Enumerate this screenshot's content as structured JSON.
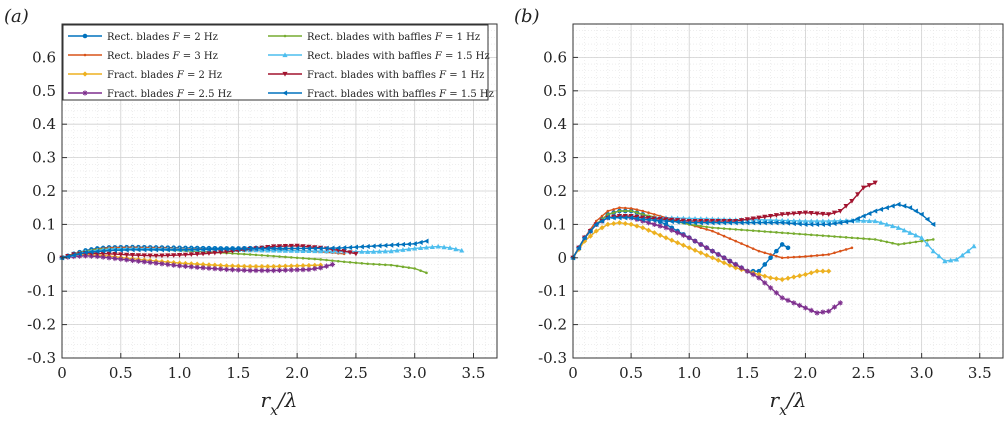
{
  "panels": [
    {
      "label": "(a)",
      "xlabel_main": "r",
      "xlabel_sub": "x",
      "xlabel_tail": "/λ"
    },
    {
      "label": "(b)",
      "xlabel_main": "r",
      "xlabel_sub": "x",
      "xlabel_tail": "/λ"
    }
  ],
  "legend": {
    "placement": "top-left (panel a)",
    "entries": [
      {
        "prefix": "Rect. blades ",
        "var": "F",
        "suffix": " = 2 Hz"
      },
      {
        "prefix": "Rect. blades ",
        "var": "F",
        "suffix": " = 3 Hz"
      },
      {
        "prefix": "Fract. blades ",
        "var": "F",
        "suffix": " = 2 Hz"
      },
      {
        "prefix": "Fract. blades ",
        "var": "F",
        "suffix": " = 2.5 Hz"
      },
      {
        "prefix": "Rect. blades with baffles ",
        "var": "F",
        "suffix": " = 1 Hz"
      },
      {
        "prefix": "Rect. blades with baffles ",
        "var": "F",
        "suffix": " = 1.5 Hz"
      },
      {
        "prefix": "Fract. blades with baffles ",
        "var": "F",
        "suffix": " = 1 Hz"
      },
      {
        "prefix": "Fract. blades with baffles ",
        "var": "F",
        "suffix": " = 1.5 Hz"
      }
    ]
  },
  "chart_data": [
    {
      "type": "line",
      "panel": "(a)",
      "xlim": [
        0,
        3.7
      ],
      "ylim": [
        -0.3,
        0.7
      ],
      "xticks": [
        "0",
        "0.5",
        "1.0",
        "1.5",
        "2.0",
        "2.5",
        "3.0",
        "3.5"
      ],
      "yticks": [
        "-0.3",
        "-0.2",
        "-0.1",
        "0",
        "0.1",
        "0.2",
        "0.3",
        "0.4",
        "0.5",
        "0.6"
      ],
      "grid": true,
      "series": [
        {
          "name": "Rect. blades F = 2 Hz",
          "color": "#0072BD",
          "marker": "circle",
          "x": [
            0,
            0.1,
            0.2,
            0.3,
            0.4,
            0.6,
            0.8,
            1.0,
            1.2,
            1.4,
            1.5,
            1.6,
            1.7,
            1.8,
            1.9
          ],
          "y": [
            0,
            0.012,
            0.022,
            0.028,
            0.031,
            0.032,
            0.031,
            0.03,
            0.029,
            0.028,
            0.028,
            0.029,
            0.03,
            0.028,
            0.026
          ]
        },
        {
          "name": "Rect. blades F = 3 Hz",
          "color": "#D95319",
          "marker": "dot",
          "x": [
            0,
            0.1,
            0.2,
            0.3,
            0.4,
            0.6,
            0.8,
            1.0,
            1.2,
            1.4,
            1.6,
            1.8,
            2.0,
            2.2,
            2.4
          ],
          "y": [
            0,
            0.01,
            0.02,
            0.026,
            0.03,
            0.031,
            0.03,
            0.028,
            0.026,
            0.024,
            0.022,
            0.022,
            0.022,
            0.018,
            0.012
          ]
        },
        {
          "name": "Fract. blades F = 2 Hz",
          "color": "#EDB120",
          "marker": "diamond",
          "x": [
            0,
            0.1,
            0.2,
            0.3,
            0.4,
            0.6,
            0.8,
            1.0,
            1.2,
            1.4,
            1.6,
            1.8,
            2.0,
            2.2
          ],
          "y": [
            0,
            0.006,
            0.01,
            0.008,
            0.005,
            -0.003,
            -0.01,
            -0.016,
            -0.02,
            -0.024,
            -0.026,
            -0.026,
            -0.024,
            -0.022
          ]
        },
        {
          "name": "Fract. blades F = 2.5 Hz",
          "color": "#7E2F8E",
          "marker": "star",
          "x": [
            0,
            0.1,
            0.2,
            0.3,
            0.4,
            0.6,
            0.8,
            1.0,
            1.2,
            1.4,
            1.6,
            1.8,
            2.0,
            2.1,
            2.2,
            2.3
          ],
          "y": [
            0,
            0.004,
            0.006,
            0.004,
            0.0,
            -0.008,
            -0.016,
            -0.024,
            -0.03,
            -0.035,
            -0.038,
            -0.038,
            -0.036,
            -0.035,
            -0.03,
            -0.02
          ]
        },
        {
          "name": "Rect. blades with baffles F = 1 Hz",
          "color": "#77AC30",
          "marker": "dot",
          "x": [
            0,
            0.1,
            0.2,
            0.3,
            0.4,
            0.6,
            0.8,
            1.0,
            1.2,
            1.4,
            1.6,
            1.8,
            2.0,
            2.2,
            2.4,
            2.6,
            2.8,
            3.0,
            3.1
          ],
          "y": [
            0,
            0.012,
            0.02,
            0.025,
            0.027,
            0.027,
            0.025,
            0.022,
            0.018,
            0.014,
            0.01,
            0.005,
            0.0,
            -0.005,
            -0.012,
            -0.018,
            -0.022,
            -0.032,
            -0.045
          ]
        },
        {
          "name": "Rect. blades with baffles F = 1.5 Hz",
          "color": "#4DBEEE",
          "marker": "triangle-up",
          "x": [
            0,
            0.2,
            0.4,
            0.6,
            0.8,
            1.0,
            1.2,
            1.4,
            1.6,
            1.8,
            2.0,
            2.2,
            2.4,
            2.6,
            2.8,
            3.0,
            3.2,
            3.3,
            3.4
          ],
          "y": [
            0,
            0.018,
            0.026,
            0.028,
            0.027,
            0.026,
            0.025,
            0.024,
            0.023,
            0.022,
            0.021,
            0.02,
            0.019,
            0.018,
            0.02,
            0.028,
            0.034,
            0.03,
            0.022
          ]
        },
        {
          "name": "Fract. blades with baffles F = 1 Hz",
          "color": "#A2142F",
          "marker": "triangle-down",
          "x": [
            0,
            0.1,
            0.2,
            0.4,
            0.6,
            0.8,
            1.0,
            1.2,
            1.4,
            1.6,
            1.8,
            2.0,
            2.2,
            2.4,
            2.5
          ],
          "y": [
            0,
            0.01,
            0.014,
            0.012,
            0.008,
            0.006,
            0.008,
            0.012,
            0.018,
            0.026,
            0.034,
            0.036,
            0.03,
            0.02,
            0.012
          ]
        },
        {
          "name": "Fract. blades with baffles F = 1.5 Hz",
          "color": "#0072BD",
          "marker": "triangle-left",
          "x": [
            0,
            0.2,
            0.4,
            0.6,
            0.8,
            1.0,
            1.2,
            1.4,
            1.6,
            1.8,
            2.0,
            2.2,
            2.4,
            2.6,
            2.8,
            3.0,
            3.1
          ],
          "y": [
            0,
            0.016,
            0.022,
            0.024,
            0.024,
            0.024,
            0.025,
            0.026,
            0.027,
            0.028,
            0.028,
            0.028,
            0.03,
            0.034,
            0.038,
            0.042,
            0.05
          ]
        }
      ]
    },
    {
      "type": "line",
      "panel": "(b)",
      "xlim": [
        0,
        3.7
      ],
      "ylim": [
        -0.3,
        0.7
      ],
      "xticks": [
        "0",
        "0.5",
        "1.0",
        "1.5",
        "2.0",
        "2.5",
        "3.0",
        "3.5"
      ],
      "yticks": [
        "-0.3",
        "-0.2",
        "-0.1",
        "0",
        "0.1",
        "0.2",
        "0.3",
        "0.4",
        "0.5",
        "0.6"
      ],
      "grid": true,
      "series": [
        {
          "name": "Rect. blades F = 2 Hz",
          "color": "#0072BD",
          "marker": "circle",
          "x": [
            0,
            0.1,
            0.2,
            0.3,
            0.4,
            0.5,
            0.6,
            0.8,
            1.0,
            1.2,
            1.4,
            1.5,
            1.6,
            1.7,
            1.8,
            1.85
          ],
          "y": [
            0,
            0.06,
            0.1,
            0.13,
            0.14,
            0.14,
            0.13,
            0.1,
            0.06,
            0.02,
            -0.02,
            -0.04,
            -0.04,
            0.0,
            0.04,
            0.03
          ]
        },
        {
          "name": "Rect. blades F = 3 Hz",
          "color": "#D95319",
          "marker": "dot",
          "x": [
            0,
            0.1,
            0.2,
            0.3,
            0.4,
            0.5,
            0.6,
            0.8,
            1.0,
            1.2,
            1.4,
            1.6,
            1.8,
            2.0,
            2.2,
            2.4
          ],
          "y": [
            0,
            0.06,
            0.11,
            0.14,
            0.15,
            0.148,
            0.14,
            0.12,
            0.1,
            0.08,
            0.05,
            0.02,
            0.0,
            0.004,
            0.01,
            0.03
          ]
        },
        {
          "name": "Fract. blades F = 2 Hz",
          "color": "#EDB120",
          "marker": "diamond",
          "x": [
            0,
            0.1,
            0.2,
            0.3,
            0.4,
            0.5,
            0.6,
            0.8,
            1.0,
            1.2,
            1.4,
            1.6,
            1.7,
            1.8,
            2.0,
            2.1,
            2.2
          ],
          "y": [
            0,
            0.05,
            0.08,
            0.1,
            0.105,
            0.1,
            0.09,
            0.06,
            0.03,
            0.0,
            -0.03,
            -0.05,
            -0.06,
            -0.065,
            -0.05,
            -0.04,
            -0.04
          ]
        },
        {
          "name": "Fract. blades F = 2.5 Hz",
          "color": "#7E2F8E",
          "marker": "star",
          "x": [
            0,
            0.1,
            0.2,
            0.3,
            0.4,
            0.5,
            0.6,
            0.8,
            1.0,
            1.2,
            1.4,
            1.6,
            1.8,
            2.0,
            2.1,
            2.2,
            2.3
          ],
          "y": [
            0,
            0.06,
            0.1,
            0.12,
            0.125,
            0.12,
            0.11,
            0.09,
            0.06,
            0.02,
            -0.02,
            -0.06,
            -0.12,
            -0.15,
            -0.165,
            -0.16,
            -0.135
          ]
        },
        {
          "name": "Rect. blades with baffles F = 1 Hz",
          "color": "#77AC30",
          "marker": "dot",
          "x": [
            0,
            0.1,
            0.2,
            0.3,
            0.4,
            0.5,
            0.6,
            0.8,
            1.0,
            1.2,
            1.4,
            1.6,
            1.8,
            2.0,
            2.2,
            2.4,
            2.6,
            2.8,
            3.0,
            3.1
          ],
          "y": [
            0,
            0.06,
            0.1,
            0.13,
            0.14,
            0.14,
            0.13,
            0.115,
            0.1,
            0.09,
            0.085,
            0.08,
            0.075,
            0.07,
            0.065,
            0.06,
            0.055,
            0.04,
            0.05,
            0.055
          ]
        },
        {
          "name": "Rect. blades with baffles F = 1.5 Hz",
          "color": "#4DBEEE",
          "marker": "triangle-up",
          "x": [
            0,
            0.1,
            0.2,
            0.3,
            0.4,
            0.5,
            0.6,
            0.8,
            1.0,
            1.2,
            1.4,
            1.6,
            1.8,
            2.0,
            2.2,
            2.4,
            2.6,
            2.8,
            3.0,
            3.1,
            3.2,
            3.3,
            3.4,
            3.45
          ],
          "y": [
            0,
            0.06,
            0.1,
            0.12,
            0.125,
            0.125,
            0.12,
            0.12,
            0.118,
            0.116,
            0.114,
            0.114,
            0.112,
            0.11,
            0.11,
            0.112,
            0.11,
            0.09,
            0.06,
            0.02,
            -0.01,
            -0.005,
            0.02,
            0.035
          ]
        },
        {
          "name": "Fract. blades with baffles F = 1 Hz",
          "color": "#A2142F",
          "marker": "triangle-down",
          "x": [
            0,
            0.1,
            0.2,
            0.3,
            0.4,
            0.5,
            0.6,
            0.8,
            1.0,
            1.2,
            1.4,
            1.6,
            1.8,
            2.0,
            2.2,
            2.3,
            2.4,
            2.5,
            2.6
          ],
          "y": [
            0,
            0.06,
            0.1,
            0.12,
            0.125,
            0.125,
            0.12,
            0.115,
            0.11,
            0.11,
            0.11,
            0.12,
            0.13,
            0.135,
            0.13,
            0.14,
            0.17,
            0.21,
            0.225
          ]
        },
        {
          "name": "Fract. blades with baffles F = 1.5 Hz",
          "color": "#0072BD",
          "marker": "triangle-left",
          "x": [
            0,
            0.1,
            0.2,
            0.3,
            0.4,
            0.5,
            0.6,
            0.8,
            1.0,
            1.2,
            1.4,
            1.6,
            1.8,
            2.0,
            2.2,
            2.4,
            2.6,
            2.8,
            2.9,
            3.0,
            3.1
          ],
          "y": [
            0,
            0.06,
            0.1,
            0.12,
            0.12,
            0.12,
            0.115,
            0.11,
            0.105,
            0.105,
            0.105,
            0.105,
            0.105,
            0.1,
            0.1,
            0.11,
            0.14,
            0.16,
            0.15,
            0.13,
            0.1
          ]
        }
      ]
    }
  ]
}
